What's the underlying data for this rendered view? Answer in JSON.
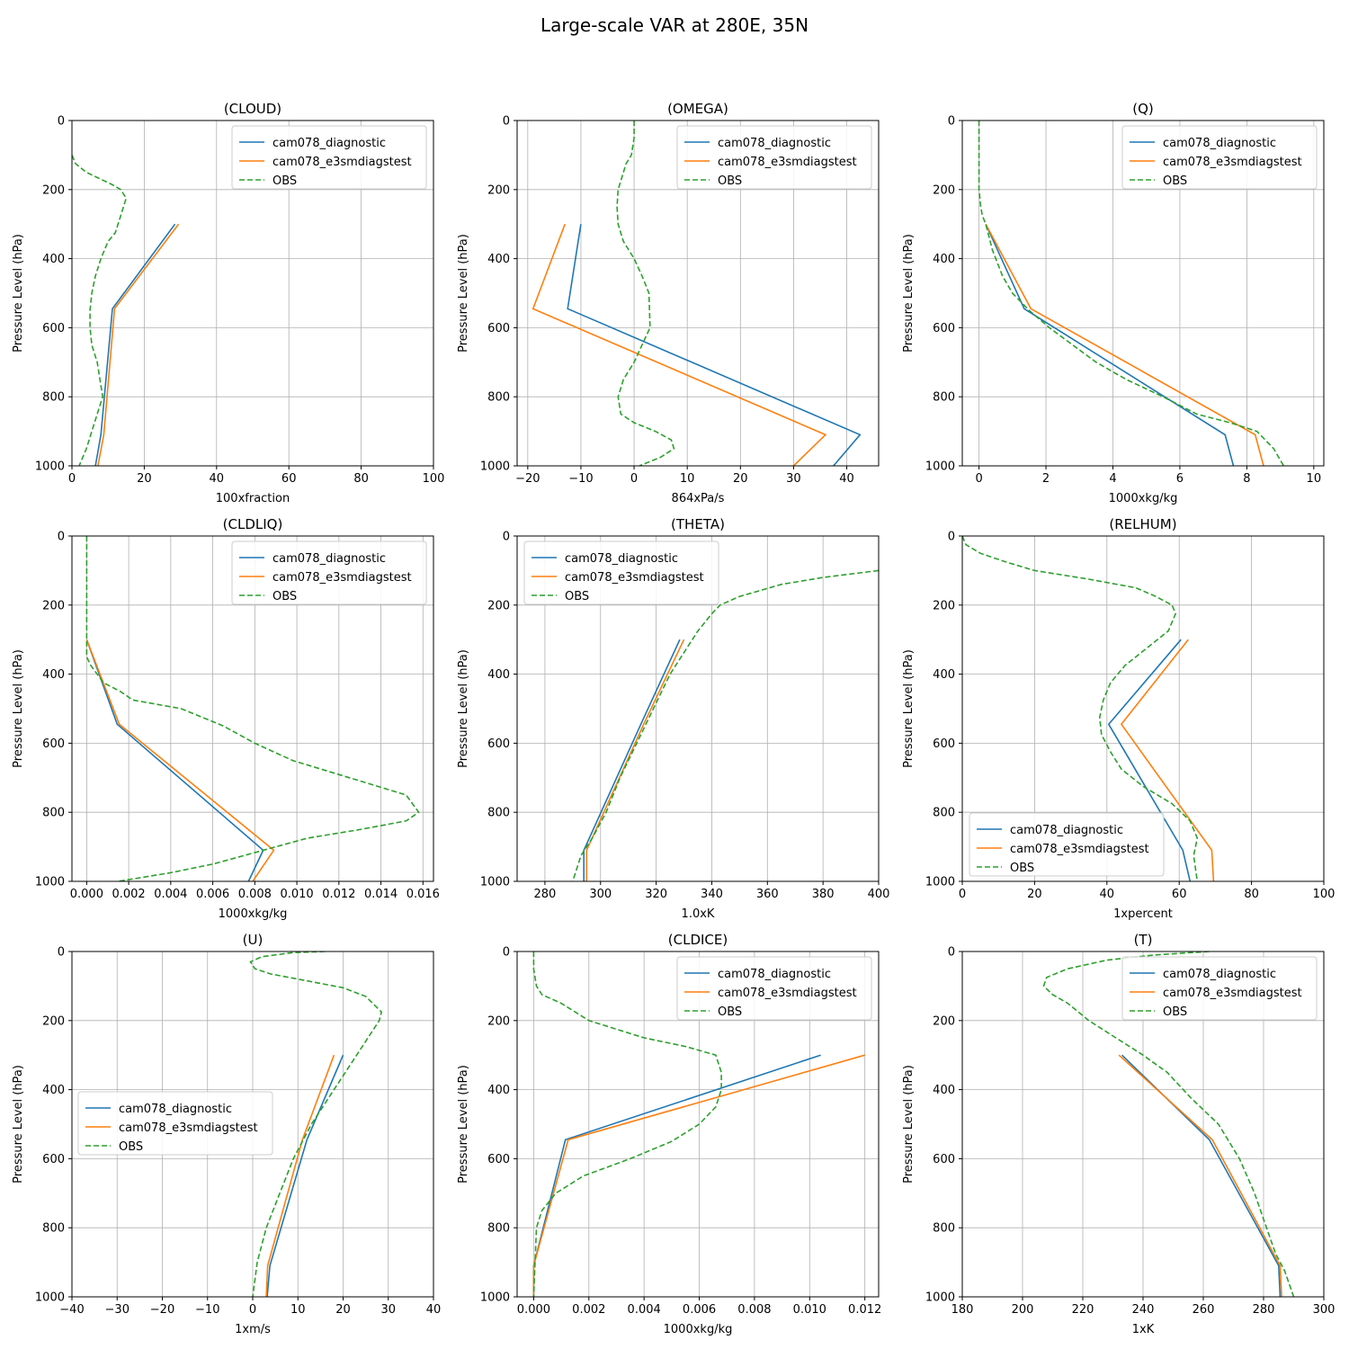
{
  "suptitle": "Large-scale VAR at 280E, 35N",
  "colors": {
    "model1": "#1f77b4",
    "model2": "#ff7f0e",
    "obs": "#2ca02c"
  },
  "legend_labels": [
    "cam078_diagnostic",
    "cam078_e3smdiagstest",
    "OBS"
  ],
  "chart_data": [
    {
      "type": "line",
      "title": "(CLOUD)",
      "xlabel": "100xfraction",
      "ylabel": "Pressure Level (hPa)",
      "xlim": [
        0,
        100
      ],
      "xticks": [
        0,
        20,
        40,
        60,
        80,
        100
      ],
      "xtick_labels": [
        "0",
        "20",
        "40",
        "60",
        "80",
        "100"
      ],
      "ylim": [
        1000,
        0
      ],
      "yticks": [
        0,
        200,
        400,
        600,
        800,
        1000
      ],
      "ytick_labels": [
        "0",
        "200",
        "400",
        "600",
        "800",
        "1000"
      ],
      "legend_loc": "top-right",
      "series": [
        {
          "name": "cam078_diagnostic",
          "x": [
            28.5,
            11.2,
            8.0,
            6.5
          ],
          "y": [
            300,
            545,
            910,
            1000
          ]
        },
        {
          "name": "cam078_e3smdiagstest",
          "x": [
            29.5,
            11.8,
            8.8,
            7.2
          ],
          "y": [
            300,
            545,
            910,
            1000
          ]
        },
        {
          "name": "OBS",
          "x": [
            0,
            1,
            4,
            8,
            11,
            13.5,
            15,
            13.5,
            12,
            10,
            8,
            6.5,
            5.5,
            5,
            5,
            5.5,
            7,
            8.5,
            7,
            5.5,
            4,
            2
          ],
          "y": [
            100,
            125,
            150,
            170,
            185,
            200,
            225,
            275,
            325,
            350,
            400,
            450,
            500,
            550,
            600,
            650,
            700,
            800,
            850,
            900,
            950,
            1000
          ]
        }
      ]
    },
    {
      "type": "line",
      "title": "(OMEGA)",
      "xlabel": "864xPa/s",
      "ylabel": "Pressure Level (hPa)",
      "xlim": [
        -22,
        46
      ],
      "xticks": [
        -20,
        -10,
        0,
        10,
        20,
        30,
        40
      ],
      "xtick_labels": [
        "−20",
        "−10",
        "0",
        "10",
        "20",
        "30",
        "40"
      ],
      "ylim": [
        1000,
        0
      ],
      "yticks": [
        0,
        200,
        400,
        600,
        800,
        1000
      ],
      "ytick_labels": [
        "0",
        "200",
        "400",
        "600",
        "800",
        "1000"
      ],
      "legend_loc": "top-right",
      "series": [
        {
          "name": "cam078_diagnostic",
          "x": [
            -10,
            -12.5,
            42.5,
            37.5
          ],
          "y": [
            300,
            545,
            910,
            1000
          ]
        },
        {
          "name": "cam078_e3smdiagstest",
          "x": [
            -13,
            -19,
            36,
            30
          ],
          "y": [
            300,
            545,
            910,
            1000
          ]
        },
        {
          "name": "OBS",
          "x": [
            0,
            0,
            -0.5,
            -1.5,
            -2,
            -2.5,
            -3,
            -3.2,
            -3,
            -2,
            0,
            1.5,
            2.8,
            3,
            1.5,
            0,
            -2,
            -3,
            -2.5,
            0,
            4,
            7,
            7.5,
            5,
            1
          ],
          "y": [
            0,
            50,
            100,
            125,
            150,
            175,
            200,
            250,
            300,
            350,
            400,
            450,
            500,
            600,
            650,
            700,
            750,
            800,
            850,
            875,
            900,
            925,
            950,
            975,
            1000
          ]
        }
      ]
    },
    {
      "type": "line",
      "title": "(Q)",
      "xlabel": "1000xkg/kg",
      "ylabel": "Pressure Level (hPa)",
      "xlim": [
        -0.5,
        10.3
      ],
      "xticks": [
        0,
        2,
        4,
        6,
        8,
        10
      ],
      "xtick_labels": [
        "0",
        "2",
        "4",
        "6",
        "8",
        "10"
      ],
      "ylim": [
        1000,
        0
      ],
      "yticks": [
        0,
        200,
        400,
        600,
        800,
        1000
      ],
      "ytick_labels": [
        "0",
        "200",
        "400",
        "600",
        "800",
        "1000"
      ],
      "legend_loc": "top-right",
      "series": [
        {
          "name": "cam078_diagnostic",
          "x": [
            0.2,
            1.35,
            7.35,
            7.6
          ],
          "y": [
            300,
            545,
            910,
            1000
          ]
        },
        {
          "name": "cam078_e3smdiagstest",
          "x": [
            0.2,
            1.55,
            8.25,
            8.5
          ],
          "y": [
            300,
            545,
            910,
            1000
          ]
        },
        {
          "name": "OBS",
          "x": [
            0,
            0,
            0,
            0.05,
            0.1,
            0.2,
            0.4,
            0.7,
            1.0,
            1.5,
            2.1,
            2.8,
            3.5,
            4.4,
            5.5,
            6.5,
            7.5,
            8.3,
            8.8,
            9.1
          ],
          "y": [
            0,
            100,
            200,
            250,
            275,
            300,
            375,
            450,
            500,
            550,
            600,
            650,
            700,
            750,
            800,
            850,
            875,
            900,
            950,
            1000
          ]
        }
      ]
    },
    {
      "type": "line",
      "title": "(CLDLIQ)",
      "xlabel": "1000xkg/kg",
      "ylabel": "Pressure Level (hPa)",
      "xlim": [
        -0.0007,
        0.0165
      ],
      "xticks": [
        0,
        0.002,
        0.004,
        0.006,
        0.008,
        0.01,
        0.012,
        0.014,
        0.016
      ],
      "xtick_labels": [
        "0.000",
        "0.002",
        "0.004",
        "0.006",
        "0.008",
        "0.010",
        "0.012",
        "0.014",
        "0.016"
      ],
      "ylim": [
        1000,
        0
      ],
      "yticks": [
        0,
        200,
        400,
        600,
        800,
        1000
      ],
      "ytick_labels": [
        "0",
        "200",
        "400",
        "600",
        "800",
        "1000"
      ],
      "legend_loc": "top-right",
      "series": [
        {
          "name": "cam078_diagnostic",
          "x": [
            0,
            0.00145,
            0.0084,
            0.0077
          ],
          "y": [
            300,
            545,
            910,
            1000
          ]
        },
        {
          "name": "cam078_e3smdiagstest",
          "x": [
            0,
            0.00155,
            0.0089,
            0.0079
          ],
          "y": [
            300,
            545,
            910,
            1000
          ]
        },
        {
          "name": "OBS",
          "x": [
            0,
            0,
            0,
            0,
            0.0002,
            0.0008,
            0.0016,
            0.0022,
            0.0045,
            0.0065,
            0.008,
            0.0098,
            0.0125,
            0.0152,
            0.0158,
            0.0152,
            0.013,
            0.0105,
            0.009,
            0.0075,
            0.006,
            0.004,
            0.0015
          ],
          "y": [
            0,
            200,
            300,
            350,
            375,
            425,
            450,
            475,
            500,
            550,
            600,
            650,
            700,
            750,
            800,
            825,
            850,
            875,
            900,
            925,
            950,
            975,
            1000
          ]
        }
      ]
    },
    {
      "type": "line",
      "title": "(THETA)",
      "xlabel": "1.0xK",
      "ylabel": "Pressure Level (hPa)",
      "xlim": [
        270,
        400
      ],
      "xticks": [
        280,
        300,
        320,
        340,
        360,
        380,
        400
      ],
      "xtick_labels": [
        "280",
        "300",
        "320",
        "340",
        "360",
        "380",
        "400"
      ],
      "ylim": [
        1000,
        0
      ],
      "yticks": [
        0,
        200,
        400,
        600,
        800,
        1000
      ],
      "ytick_labels": [
        "0",
        "200",
        "400",
        "600",
        "800",
        "1000"
      ],
      "legend_loc": "top-left",
      "series": [
        {
          "name": "cam078_diagnostic",
          "x": [
            328.5,
            314.5,
            294,
            294
          ],
          "y": [
            300,
            545,
            910,
            1000
          ]
        },
        {
          "name": "cam078_e3smdiagstest",
          "x": [
            330,
            315.5,
            295,
            295
          ],
          "y": [
            300,
            545,
            910,
            1000
          ]
        },
        {
          "name": "OBS",
          "x": [
            400,
            380,
            365,
            350,
            343,
            340,
            335,
            331,
            325,
            319,
            313,
            307,
            302,
            297,
            293,
            291,
            290
          ],
          "y": [
            100,
            120,
            140,
            175,
            200,
            225,
            275,
            325,
            400,
            500,
            600,
            700,
            800,
            875,
            925,
            975,
            1000
          ]
        }
      ]
    },
    {
      "type": "line",
      "title": "(RELHUM)",
      "xlabel": "1xpercent",
      "ylabel": "Pressure Level (hPa)",
      "xlim": [
        0,
        100
      ],
      "xticks": [
        0,
        20,
        40,
        60,
        80,
        100
      ],
      "xtick_labels": [
        "0",
        "20",
        "40",
        "60",
        "80",
        "100"
      ],
      "ylim": [
        1000,
        0
      ],
      "yticks": [
        0,
        200,
        400,
        600,
        800,
        1000
      ],
      "ytick_labels": [
        "0",
        "200",
        "400",
        "600",
        "800",
        "1000"
      ],
      "legend_loc": "bottom-left",
      "series": [
        {
          "name": "cam078_diagnostic",
          "x": [
            60.5,
            40.5,
            61,
            63
          ],
          "y": [
            300,
            545,
            910,
            1000
          ]
        },
        {
          "name": "cam078_e3smdiagstest",
          "x": [
            62.5,
            44,
            69,
            69.5
          ],
          "y": [
            300,
            545,
            910,
            1000
          ]
        },
        {
          "name": "OBS",
          "x": [
            0,
            1,
            5,
            12,
            20,
            35,
            48,
            53.5,
            58,
            59,
            57,
            51,
            45,
            41,
            39,
            38,
            38.5,
            41,
            44,
            50,
            58,
            63,
            65,
            64,
            65
          ],
          "y": [
            0,
            25,
            50,
            75,
            100,
            125,
            150,
            175,
            200,
            225,
            275,
            325,
            375,
            425,
            475,
            525,
            575,
            625,
            675,
            725,
            775,
            825,
            875,
            925,
            1000
          ]
        }
      ]
    },
    {
      "type": "line",
      "title": "(U)",
      "xlabel": "1xm/s",
      "ylabel": "Pressure Level (hPa)",
      "xlim": [
        -40,
        40
      ],
      "xticks": [
        -40,
        -30,
        -20,
        -10,
        0,
        10,
        20,
        30,
        40
      ],
      "xtick_labels": [
        "−40",
        "−30",
        "−20",
        "−10",
        "0",
        "10",
        "20",
        "30",
        "40"
      ],
      "ylim": [
        1000,
        0
      ],
      "yticks": [
        0,
        200,
        400,
        600,
        800,
        1000
      ],
      "ytick_labels": [
        "0",
        "200",
        "400",
        "600",
        "800",
        "1000"
      ],
      "legend_loc": "center-left",
      "series": [
        {
          "name": "cam078_diagnostic",
          "x": [
            20,
            12,
            3.8,
            3.2
          ],
          "y": [
            300,
            545,
            910,
            1000
          ]
        },
        {
          "name": "cam078_e3smdiagstest",
          "x": [
            18,
            11,
            3.3,
            3.0
          ],
          "y": [
            300,
            545,
            910,
            1000
          ]
        },
        {
          "name": "OBS",
          "x": [
            16,
            9,
            2,
            -0.5,
            0.5,
            4,
            10,
            20,
            25,
            28.5,
            28,
            23,
            18,
            13,
            9,
            6,
            3,
            1,
            0
          ],
          "y": [
            0,
            3,
            15,
            30,
            50,
            65,
            80,
            105,
            130,
            175,
            200,
            300,
            400,
            500,
            600,
            700,
            800,
            900,
            1000
          ]
        }
      ]
    },
    {
      "type": "line",
      "title": "(CLDICE)",
      "xlabel": "1000xkg/kg",
      "ylabel": "Pressure Level (hPa)",
      "xlim": [
        -0.0006,
        0.0125
      ],
      "xticks": [
        0,
        0.002,
        0.004,
        0.006,
        0.008,
        0.01,
        0.012
      ],
      "xtick_labels": [
        "0.000",
        "0.002",
        "0.004",
        "0.006",
        "0.008",
        "0.010",
        "0.012"
      ],
      "ylim": [
        1000,
        0
      ],
      "yticks": [
        0,
        200,
        400,
        600,
        800,
        1000
      ],
      "ytick_labels": [
        "0",
        "200",
        "400",
        "600",
        "800",
        "1000"
      ],
      "legend_loc": "top-right",
      "series": [
        {
          "name": "cam078_diagnostic",
          "x": [
            0.0104,
            0.00115,
            0,
            0
          ],
          "y": [
            300,
            545,
            910,
            1000
          ]
        },
        {
          "name": "cam078_e3smdiagstest",
          "x": [
            0.012,
            0.00125,
            0,
            0
          ],
          "y": [
            300,
            545,
            910,
            1000
          ]
        },
        {
          "name": "OBS",
          "x": [
            0,
            0,
            0.0001,
            0.0003,
            0.001,
            0.002,
            0.004,
            0.0055,
            0.0066,
            0.0068,
            0.0068,
            0.0066,
            0.006,
            0.005,
            0.0035,
            0.0018,
            0.0008,
            0.0003,
            0.0001,
            0
          ],
          "y": [
            0,
            50,
            100,
            125,
            150,
            200,
            250,
            275,
            300,
            350,
            400,
            450,
            500,
            550,
            600,
            650,
            700,
            750,
            800,
            1000
          ]
        }
      ]
    },
    {
      "type": "line",
      "title": "(T)",
      "xlabel": "1xK",
      "ylabel": "Pressure Level (hPa)",
      "xlim": [
        180,
        300
      ],
      "xticks": [
        180,
        200,
        220,
        240,
        260,
        280,
        300
      ],
      "xtick_labels": [
        "180",
        "200",
        "220",
        "240",
        "260",
        "280",
        "300"
      ],
      "ylim": [
        1000,
        0
      ],
      "yticks": [
        0,
        200,
        400,
        600,
        800,
        1000
      ],
      "ytick_labels": [
        "0",
        "200",
        "400",
        "600",
        "800",
        "1000"
      ],
      "legend_loc": "top-right",
      "series": [
        {
          "name": "cam078_diagnostic",
          "x": [
            233,
            262,
            285,
            285.5
          ],
          "y": [
            300,
            545,
            910,
            1000
          ]
        },
        {
          "name": "cam078_e3smdiagstest",
          "x": [
            232,
            263,
            285.5,
            286
          ],
          "y": [
            300,
            545,
            910,
            1000
          ]
        },
        {
          "name": "OBS",
          "x": [
            262,
            244,
            228,
            215,
            208,
            207,
            210,
            215,
            222,
            231,
            240,
            248,
            256,
            265,
            272,
            277,
            281,
            284,
            287,
            290
          ],
          "y": [
            0,
            10,
            25,
            50,
            75,
            100,
            125,
            150,
            200,
            250,
            300,
            350,
            425,
            500,
            600,
            700,
            800,
            875,
            925,
            1000
          ]
        }
      ]
    }
  ]
}
